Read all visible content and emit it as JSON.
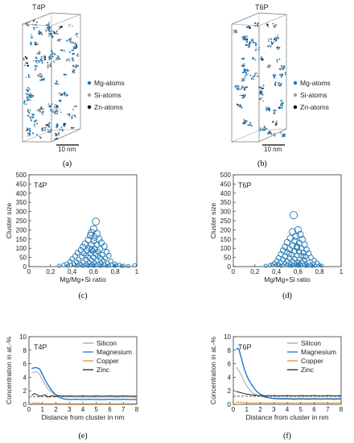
{
  "panels": {
    "a": {
      "title": "T4P",
      "caption": "(a)",
      "scale_label": "10 nm",
      "legend": [
        {
          "label": "Mg-atoms",
          "color": "#1f77b4"
        },
        {
          "label": "Si-atoms",
          "color": "#a0a0a0"
        },
        {
          "label": "Zn-atoms",
          "color": "#000000"
        }
      ]
    },
    "b": {
      "title": "T6P",
      "caption": "(b)",
      "scale_label": "10 nm",
      "legend": [
        {
          "label": "Mg-atoms",
          "color": "#1f77b4"
        },
        {
          "label": "Si-atoms",
          "color": "#a0a0a0"
        },
        {
          "label": "Zn-atoms",
          "color": "#000000"
        }
      ]
    }
  },
  "chart_data": [
    {
      "id": "c",
      "type": "scatter",
      "title": "T4P",
      "caption": "(c)",
      "xlabel": "Mg/Mg+Si ratio",
      "ylabel": "Cluster size",
      "xlim": [
        0,
        1
      ],
      "ylim": [
        0,
        500
      ],
      "xticks": [
        "0",
        "0,2",
        "0,4",
        "0,6",
        "0,8",
        "1"
      ],
      "yticks": [
        "0",
        "50",
        "100",
        "150",
        "200",
        "250",
        "300",
        "350",
        "400",
        "450",
        "500"
      ],
      "marker_color": "#1f77b4",
      "points": [
        [
          0.62,
          245
        ],
        [
          0.6,
          205
        ],
        [
          0.58,
          185
        ],
        [
          0.63,
          180
        ],
        [
          0.57,
          170
        ],
        [
          0.61,
          160
        ],
        [
          0.65,
          150
        ],
        [
          0.55,
          145
        ],
        [
          0.6,
          140
        ],
        [
          0.67,
          130
        ],
        [
          0.52,
          125
        ],
        [
          0.58,
          120
        ],
        [
          0.63,
          118
        ],
        [
          0.7,
          110
        ],
        [
          0.5,
          108
        ],
        [
          0.56,
          100
        ],
        [
          0.61,
          98
        ],
        [
          0.66,
          95
        ],
        [
          0.48,
          90
        ],
        [
          0.54,
          88
        ],
        [
          0.59,
          85
        ],
        [
          0.64,
          82
        ],
        [
          0.72,
          80
        ],
        [
          0.45,
          75
        ],
        [
          0.51,
          72
        ],
        [
          0.57,
          70
        ],
        [
          0.62,
          68
        ],
        [
          0.68,
          65
        ],
        [
          0.74,
          60
        ],
        [
          0.43,
          58
        ],
        [
          0.49,
          55
        ],
        [
          0.55,
          52
        ],
        [
          0.6,
          50
        ],
        [
          0.66,
          48
        ],
        [
          0.71,
          45
        ],
        [
          0.4,
          42
        ],
        [
          0.46,
          40
        ],
        [
          0.53,
          38
        ],
        [
          0.58,
          36
        ],
        [
          0.63,
          34
        ],
        [
          0.69,
          32
        ],
        [
          0.76,
          30
        ],
        [
          0.38,
          28
        ],
        [
          0.44,
          26
        ],
        [
          0.5,
          24
        ],
        [
          0.56,
          22
        ],
        [
          0.61,
          21
        ],
        [
          0.67,
          20
        ],
        [
          0.73,
          18
        ],
        [
          0.8,
          16
        ],
        [
          0.35,
          15
        ],
        [
          0.42,
          14
        ],
        [
          0.48,
          13
        ],
        [
          0.54,
          12
        ],
        [
          0.59,
          12
        ],
        [
          0.65,
          11
        ],
        [
          0.7,
          10
        ],
        [
          0.77,
          10
        ],
        [
          0.84,
          9
        ],
        [
          0.32,
          9
        ],
        [
          0.39,
          8
        ],
        [
          0.46,
          8
        ],
        [
          0.52,
          7
        ],
        [
          0.57,
          7
        ],
        [
          0.62,
          7
        ],
        [
          0.68,
          6
        ],
        [
          0.74,
          6
        ],
        [
          0.81,
          6
        ],
        [
          0.88,
          5
        ],
        [
          0.28,
          5
        ],
        [
          0.36,
          5
        ],
        [
          0.44,
          5
        ],
        [
          0.5,
          4
        ],
        [
          0.55,
          4
        ],
        [
          0.6,
          4
        ],
        [
          0.66,
          4
        ],
        [
          0.72,
          4
        ],
        [
          0.79,
          4
        ],
        [
          0.86,
          3
        ],
        [
          0.92,
          3
        ],
        [
          0.98,
          8
        ],
        [
          0.64,
          58
        ],
        [
          0.58,
          92
        ],
        [
          0.53,
          62
        ]
      ]
    },
    {
      "id": "d",
      "type": "scatter",
      "title": "T6P",
      "caption": "(d)",
      "xlabel": "Mg/Mg+Si ratio",
      "ylabel": "Cluster size",
      "xlim": [
        0,
        1
      ],
      "ylim": [
        0,
        500
      ],
      "xticks": [
        "0",
        "0,2",
        "0,4",
        "0,6",
        "0,8",
        "1"
      ],
      "yticks": [
        "0",
        "50",
        "100",
        "150",
        "200",
        "250",
        "300",
        "350",
        "400",
        "450",
        "500"
      ],
      "marker_color": "#1f77b4",
      "points": [
        [
          0.56,
          280
        ],
        [
          0.6,
          200
        ],
        [
          0.55,
          190
        ],
        [
          0.62,
          175
        ],
        [
          0.58,
          165
        ],
        [
          0.53,
          155
        ],
        [
          0.64,
          148
        ],
        [
          0.57,
          140
        ],
        [
          0.5,
          132
        ],
        [
          0.61,
          128
        ],
        [
          0.66,
          120
        ],
        [
          0.55,
          115
        ],
        [
          0.48,
          108
        ],
        [
          0.59,
          105
        ],
        [
          0.63,
          100
        ],
        [
          0.52,
          95
        ],
        [
          0.68,
          92
        ],
        [
          0.46,
          88
        ],
        [
          0.57,
          85
        ],
        [
          0.61,
          82
        ],
        [
          0.5,
          78
        ],
        [
          0.65,
          75
        ],
        [
          0.7,
          72
        ],
        [
          0.44,
          68
        ],
        [
          0.54,
          65
        ],
        [
          0.59,
          62
        ],
        [
          0.63,
          60
        ],
        [
          0.48,
          56
        ],
        [
          0.67,
          54
        ],
        [
          0.72,
          50
        ],
        [
          0.42,
          48
        ],
        [
          0.52,
          45
        ],
        [
          0.57,
          43
        ],
        [
          0.61,
          40
        ],
        [
          0.46,
          38
        ],
        [
          0.66,
          36
        ],
        [
          0.75,
          34
        ],
        [
          0.4,
          32
        ],
        [
          0.5,
          30
        ],
        [
          0.55,
          28
        ],
        [
          0.6,
          27
        ],
        [
          0.64,
          25
        ],
        [
          0.7,
          24
        ],
        [
          0.44,
          22
        ],
        [
          0.78,
          20
        ],
        [
          0.38,
          19
        ],
        [
          0.48,
          18
        ],
        [
          0.53,
          17
        ],
        [
          0.58,
          16
        ],
        [
          0.62,
          15
        ],
        [
          0.68,
          14
        ],
        [
          0.74,
          13
        ],
        [
          0.36,
          12
        ],
        [
          0.42,
          12
        ],
        [
          0.5,
          11
        ],
        [
          0.56,
          10
        ],
        [
          0.6,
          10
        ],
        [
          0.66,
          9
        ],
        [
          0.72,
          9
        ],
        [
          0.8,
          8
        ],
        [
          0.34,
          8
        ],
        [
          0.4,
          7
        ],
        [
          0.46,
          7
        ],
        [
          0.52,
          6
        ],
        [
          0.58,
          6
        ],
        [
          0.63,
          6
        ],
        [
          0.69,
          5
        ],
        [
          0.76,
          5
        ],
        [
          0.82,
          5
        ],
        [
          0.3,
          5
        ],
        [
          0.44,
          4
        ],
        [
          0.54,
          4
        ],
        [
          0.61,
          4
        ],
        [
          0.67,
          4
        ],
        [
          0.73,
          3
        ],
        [
          0.59,
          110
        ],
        [
          0.52,
          70
        ],
        [
          0.65,
          58
        ]
      ]
    },
    {
      "id": "e",
      "type": "line",
      "title": "T4P",
      "caption": "(e)",
      "xlabel": "Distance from cluster in nm",
      "ylabel": "Concentration in at.-%",
      "xlim": [
        0,
        8
      ],
      "ylim": [
        0,
        10
      ],
      "xticks": [
        "0",
        "1",
        "2",
        "3",
        "4",
        "5",
        "6",
        "7",
        "8"
      ],
      "yticks": [
        "0",
        "2",
        "4",
        "6",
        "8",
        "10"
      ],
      "x": [
        0.2,
        0.4,
        0.6,
        0.8,
        1.0,
        1.2,
        1.4,
        1.6,
        1.8,
        2.0,
        2.2,
        2.4,
        2.6,
        2.8,
        3.0,
        3.5,
        4.0,
        4.5,
        5.0,
        5.5,
        6.0,
        6.5,
        7.0,
        7.5,
        8.0
      ],
      "series": [
        {
          "name": "Silicon",
          "color": "#a6a6a6",
          "values": [
            4.6,
            4.8,
            4.8,
            4.4,
            3.6,
            2.9,
            2.3,
            1.9,
            1.6,
            1.4,
            1.3,
            1.2,
            1.15,
            1.1,
            1.1,
            1.1,
            1.05,
            1.1,
            1.05,
            1.1,
            1.1,
            1.05,
            1.1,
            1.1,
            1.05
          ]
        },
        {
          "name": "Magnesium",
          "color": "#1f77d0",
          "values": [
            5.3,
            5.4,
            5.4,
            5.2,
            4.4,
            3.6,
            2.9,
            2.3,
            1.8,
            1.4,
            1.1,
            0.9,
            0.8,
            0.75,
            0.7,
            0.75,
            0.7,
            0.75,
            0.7,
            0.7,
            0.75,
            0.7,
            0.75,
            0.7,
            0.7
          ]
        },
        {
          "name": "Copper",
          "color": "#f08c1e",
          "values": [
            0.15,
            0.2,
            0.2,
            0.15,
            0.1,
            0.1,
            0.1,
            0.1,
            0.1,
            0.1,
            0.1,
            0.1,
            0.1,
            0.1,
            0.1,
            0.1,
            0.1,
            0.1,
            0.1,
            0.1,
            0.1,
            0.1,
            0.1,
            0.1,
            0.1
          ]
        },
        {
          "name": "Zinc",
          "color": "#222222",
          "values": [
            1.3,
            1.6,
            1.4,
            1.2,
            1.3,
            1.4,
            1.1,
            1.2,
            1.3,
            1.15,
            1.3,
            1.2,
            1.25,
            1.2,
            1.25,
            1.2,
            1.25,
            1.2,
            1.25,
            1.2,
            1.25,
            1.2,
            1.25,
            1.2,
            1.2
          ]
        }
      ],
      "dashed_level": 1.1
    },
    {
      "id": "f",
      "type": "line",
      "title": "T6P",
      "caption": "(f)",
      "xlabel": "Distance from cluster in nm",
      "ylabel": "Concentration in at.-%",
      "xlim": [
        0,
        8
      ],
      "ylim": [
        0,
        10
      ],
      "xticks": [
        "0",
        "1",
        "2",
        "3",
        "4",
        "5",
        "6",
        "7",
        "8"
      ],
      "yticks": [
        "0",
        "2",
        "4",
        "6",
        "8",
        "10"
      ],
      "x": [
        0.2,
        0.4,
        0.6,
        0.8,
        1.0,
        1.2,
        1.4,
        1.6,
        1.8,
        2.0,
        2.2,
        2.4,
        2.6,
        2.8,
        3.0,
        3.5,
        4.0,
        4.5,
        5.0,
        5.5,
        6.0,
        6.5,
        7.0,
        7.5,
        8.0
      ],
      "series": [
        {
          "name": "Silicon",
          "color": "#a6a6a6",
          "values": [
            5.5,
            5.0,
            4.3,
            3.4,
            2.7,
            2.2,
            1.8,
            1.5,
            1.3,
            1.2,
            1.1,
            1.0,
            1.0,
            0.95,
            0.95,
            0.9,
            0.95,
            0.9,
            0.95,
            0.9,
            0.9,
            0.95,
            0.9,
            0.9,
            0.95
          ]
        },
        {
          "name": "Magnesium",
          "color": "#1f77d0",
          "values": [
            8.2,
            8.2,
            6.8,
            5.3,
            4.2,
            3.4,
            2.8,
            2.2,
            1.8,
            1.5,
            1.3,
            1.1,
            1.0,
            0.9,
            0.85,
            0.8,
            0.8,
            0.75,
            0.8,
            0.75,
            0.8,
            0.75,
            0.8,
            0.75,
            0.8
          ]
        },
        {
          "name": "Copper",
          "color": "#f08c1e",
          "values": [
            0.3,
            0.35,
            0.3,
            0.25,
            0.2,
            0.2,
            0.2,
            0.2,
            0.2,
            0.2,
            0.2,
            0.2,
            0.2,
            0.2,
            0.2,
            0.2,
            0.2,
            0.2,
            0.2,
            0.2,
            0.2,
            0.2,
            0.2,
            0.2,
            0.2
          ]
        },
        {
          "name": "Zinc",
          "color": "#222222",
          "values": [
            1.9,
            1.8,
            1.7,
            1.6,
            1.5,
            1.45,
            1.4,
            1.35,
            1.3,
            1.3,
            1.3,
            1.25,
            1.3,
            1.25,
            1.3,
            1.25,
            1.3,
            1.25,
            1.3,
            1.25,
            1.3,
            1.25,
            1.3,
            1.25,
            1.3
          ]
        }
      ],
      "dashed_level": 1.2
    }
  ]
}
